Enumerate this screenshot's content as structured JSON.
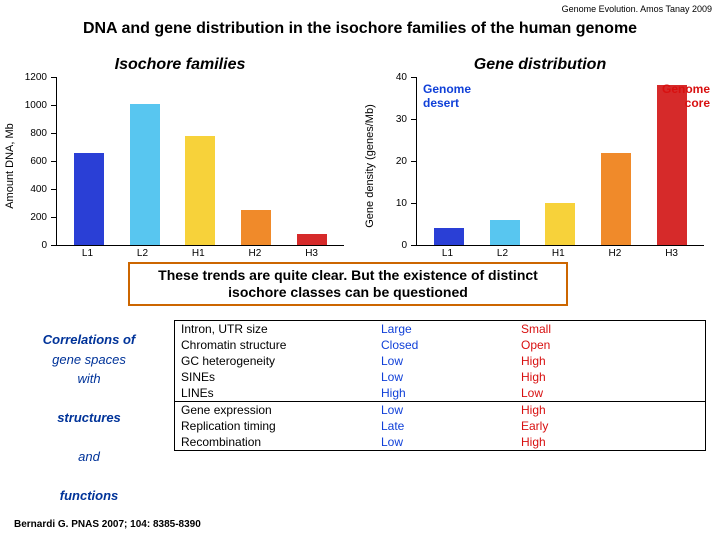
{
  "header_note": "Genome Evolution. Amos Tanay 2009",
  "title": "DNA and gene distribution in the isochore families of the human genome",
  "chart_left": {
    "title": "Isochore families",
    "ylabel": "Amount DNA, Mb",
    "ymax": 1200,
    "ytick_step": 200,
    "categories": [
      "L1",
      "L2",
      "H1",
      "H2",
      "H3"
    ],
    "values": [
      660,
      1010,
      780,
      250,
      80
    ],
    "colors": [
      "#2a3fd6",
      "#58c6f0",
      "#f7d23a",
      "#f08a2a",
      "#d62a2a"
    ]
  },
  "chart_right": {
    "title": "Gene distribution",
    "ylabel": "Gene density (genes/Mb)",
    "ymax": 40,
    "ytick_step": 10,
    "categories": [
      "L1",
      "L2",
      "H1",
      "H2",
      "H3"
    ],
    "values": [
      4,
      6,
      10,
      22,
      38
    ],
    "colors": [
      "#2a3fd6",
      "#58c6f0",
      "#f7d23a",
      "#f08a2a",
      "#d62a2a"
    ],
    "annot_desert": "Genome desert",
    "annot_desert_color": "#1040d8",
    "annot_core": "Genome core",
    "annot_core_color": "#d81010"
  },
  "callout": "These trends are quite clear. But the existence of distinct isochore classes can be questioned",
  "table": {
    "left_text": [
      "Correlations of",
      "gene spaces",
      "with",
      "",
      "structures",
      "",
      "and",
      "",
      "functions"
    ],
    "groups": [
      [
        {
          "prop": "Intron, UTR size",
          "desert": "Large",
          "core": "Small"
        },
        {
          "prop": "Chromatin structure",
          "desert": "Closed",
          "core": "Open"
        },
        {
          "prop": "GC heterogeneity",
          "desert": "Low",
          "core": "High"
        },
        {
          "prop": "SINEs",
          "desert": "Low",
          "core": "High"
        },
        {
          "prop": "LINEs",
          "desert": "High",
          "core": "Low"
        }
      ],
      [
        {
          "prop": "Gene expression",
          "desert": "Low",
          "core": "High"
        },
        {
          "prop": "Replication timing",
          "desert": "Late",
          "core": "Early"
        },
        {
          "prop": "Recombination",
          "desert": "Low",
          "core": "High"
        }
      ]
    ]
  },
  "citation": "Bernardi G. PNAS 2007; 104: 8385-8390"
}
